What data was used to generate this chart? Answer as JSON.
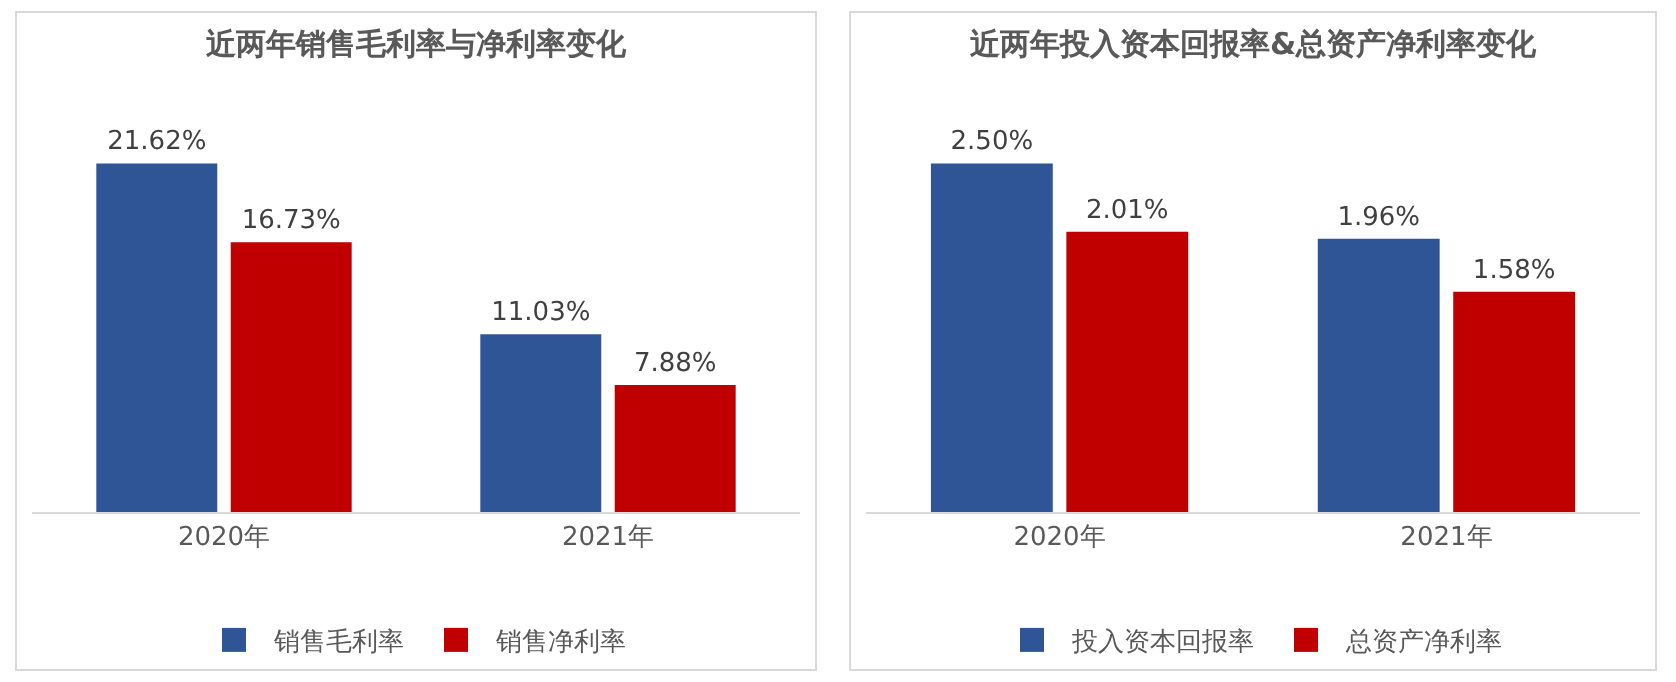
{
  "chart_data": [
    {
      "type": "bar",
      "title": "近两年销售毛利率与净利率变化",
      "categories": [
        "2020年",
        "2021年"
      ],
      "series": [
        {
          "name": "销售毛利率",
          "color": "#2f5597",
          "values": [
            21.62,
            11.03
          ],
          "value_labels": [
            "21.62%",
            "11.03%"
          ]
        },
        {
          "name": "销售净利率",
          "color": "#c00000",
          "values": [
            16.73,
            7.88
          ],
          "value_labels": [
            "16.73%",
            "7.88%"
          ]
        }
      ],
      "legend": "bottom"
    },
    {
      "type": "bar",
      "title": "近两年投入资本回报率&总资产净利率变化",
      "categories": [
        "2020年",
        "2021年"
      ],
      "series": [
        {
          "name": "投入资本回报率",
          "color": "#2f5597",
          "values": [
            2.5,
            1.96
          ],
          "value_labels": [
            "2.50%",
            "1.96%"
          ]
        },
        {
          "name": "总资产净利率",
          "color": "#c00000",
          "values": [
            2.01,
            1.58
          ],
          "value_labels": [
            "2.01%",
            "1.58%"
          ]
        }
      ],
      "legend": "bottom"
    }
  ]
}
